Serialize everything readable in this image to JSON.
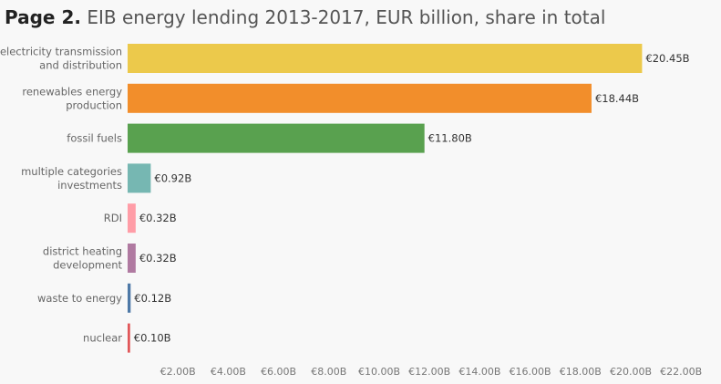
{
  "title": {
    "bold": "Page 2.",
    "rest": " EIB energy lending 2013-2017, EUR billion, share in total"
  },
  "chart_data": {
    "type": "bar",
    "orientation": "horizontal",
    "title": "Page 2. EIB energy lending 2013-2017, EUR billion, share in total",
    "xlabel": "",
    "ylabel": "",
    "xlim": [
      0,
      23
    ],
    "grid": false,
    "legend": "none",
    "x_ticks": [
      2,
      4,
      6,
      8,
      10,
      12,
      14,
      16,
      18,
      20,
      22
    ],
    "x_tick_labels": [
      "€2.00B",
      "€4.00B",
      "€6.00B",
      "€8.00B",
      "€10.00B",
      "€12.00B",
      "€14.00B",
      "€16.00B",
      "€18.00B",
      "€20.00B",
      "€22.00B"
    ],
    "categories": [
      [
        "electricity transmission",
        "and distribution"
      ],
      [
        "renewables energy",
        "production"
      ],
      [
        "fossil fuels"
      ],
      [
        "multiple categories",
        "investments"
      ],
      [
        "RDI"
      ],
      [
        "district heating",
        "development"
      ],
      [
        "waste to energy"
      ],
      [
        "nuclear"
      ]
    ],
    "values": [
      20.45,
      18.44,
      11.8,
      0.92,
      0.32,
      0.32,
      0.12,
      0.1
    ],
    "value_labels": [
      "€20.45B",
      "€18.44B",
      "€11.80B",
      "€0.92B",
      "€0.32B",
      "€0.32B",
      "€0.12B",
      "€0.10B"
    ],
    "colors": [
      "#ecc94b",
      "#f28e2b",
      "#59a14f",
      "#76b7b2",
      "#ff9da7",
      "#b07aa1",
      "#4e79a7",
      "#e15759"
    ]
  }
}
